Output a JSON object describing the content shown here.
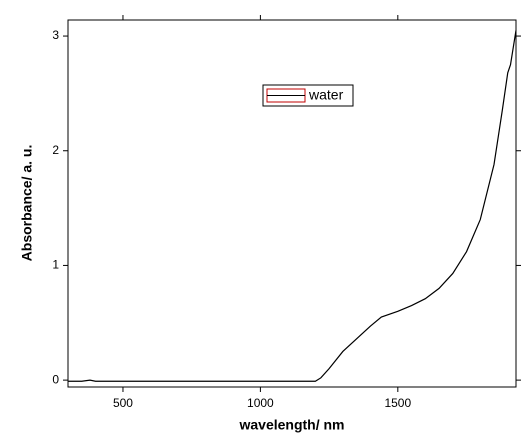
{
  "chart_data": {
    "type": "line",
    "x_label": "wavelength/ nm",
    "y_label": "Absorbance/ a. u.",
    "x": [
      300,
      350,
      380,
      400,
      500,
      1000,
      1200,
      1220,
      1250,
      1300,
      1350,
      1400,
      1440,
      1500,
      1550,
      1600,
      1650,
      1700,
      1750,
      1800,
      1850,
      1880,
      1900,
      1910,
      1920,
      1930
    ],
    "series": [
      {
        "name": "water",
        "color": "#000000",
        "values": [
          -0.01,
          -0.01,
          0.0,
          -0.01,
          -0.01,
          -0.01,
          -0.01,
          0.02,
          0.1,
          0.25,
          0.36,
          0.47,
          0.55,
          0.6,
          0.65,
          0.71,
          0.8,
          0.93,
          1.12,
          1.4,
          1.88,
          2.35,
          2.68,
          2.75,
          2.9,
          3.05
        ]
      }
    ],
    "xlim": [
      300,
      1930
    ],
    "ylim": [
      -0.06,
      3.14
    ],
    "xticks": [
      500,
      1000,
      1500
    ],
    "yticks": [
      0,
      1,
      2,
      3
    ],
    "legend": "upper center",
    "legend_sample_color": "#c00000"
  }
}
